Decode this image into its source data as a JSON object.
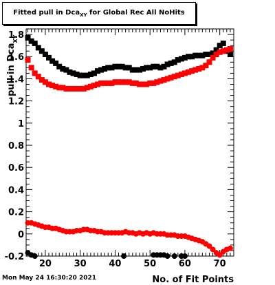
{
  "chart_data": {
    "type": "scatter",
    "title": "Fitted pull in Dca",
    "title_sub": "XY",
    "title_suffix": " for Global Rec All NoHits",
    "xlabel": "No. of Fit Points",
    "ylabel": "pull in Dca",
    "ylabel_sub": "XY",
    "xlim": [
      14.5,
      74
    ],
    "ylim": [
      -0.2,
      1.85
    ],
    "xticks": [
      20,
      30,
      40,
      50,
      60,
      70
    ],
    "yticks": [
      -0.2,
      0,
      0.2,
      0.4,
      0.6,
      0.8,
      1,
      1.2,
      1.4,
      1.6
    ],
    "ytick_labels": [
      "-0.2",
      "0",
      "0.2",
      "0.4",
      "0.6",
      "0.8",
      "1",
      "1.2",
      "1.4",
      "1.6"
    ],
    "extra_ytick": {
      "value": 1.8,
      "label": "1.8"
    },
    "grid": false,
    "series": [
      {
        "name": "",
        "color": "#000000",
        "marker": "square",
        "x": [
          15,
          16,
          17,
          18,
          19,
          20,
          21,
          22,
          23,
          24,
          25,
          26,
          27,
          28,
          29,
          30,
          31,
          32,
          33,
          34,
          35,
          36,
          37,
          38,
          39,
          40,
          41,
          42,
          43,
          44,
          45,
          46,
          47,
          48,
          49,
          50,
          51,
          52,
          53,
          54,
          55,
          56,
          57,
          58,
          59,
          60,
          61,
          62,
          63,
          64,
          65,
          66,
          67,
          68,
          69,
          70,
          71,
          72,
          73
        ],
        "y": [
          1.77,
          1.74,
          1.72,
          1.68,
          1.65,
          1.62,
          1.59,
          1.56,
          1.54,
          1.51,
          1.49,
          1.48,
          1.46,
          1.45,
          1.44,
          1.43,
          1.43,
          1.43,
          1.44,
          1.45,
          1.47,
          1.48,
          1.49,
          1.5,
          1.5,
          1.51,
          1.51,
          1.51,
          1.5,
          1.5,
          1.48,
          1.48,
          1.48,
          1.49,
          1.5,
          1.5,
          1.51,
          1.51,
          1.5,
          1.51,
          1.53,
          1.54,
          1.55,
          1.57,
          1.58,
          1.59,
          1.6,
          1.6,
          1.61,
          1.61,
          1.61,
          1.62,
          1.62,
          1.63,
          1.66,
          1.7,
          1.72,
          1.65,
          1.62
        ]
      },
      {
        "name": "",
        "color": "#ff0000",
        "marker": "square",
        "x": [
          15,
          16,
          17,
          18,
          19,
          20,
          21,
          22,
          23,
          24,
          25,
          26,
          27,
          28,
          29,
          30,
          31,
          32,
          33,
          34,
          35,
          36,
          37,
          38,
          39,
          40,
          41,
          42,
          43,
          44,
          45,
          46,
          47,
          48,
          49,
          50,
          51,
          52,
          53,
          54,
          55,
          56,
          57,
          58,
          59,
          60,
          61,
          62,
          63,
          64,
          65,
          66,
          67,
          68,
          69,
          70,
          71,
          72,
          73
        ],
        "y": [
          1.57,
          1.5,
          1.45,
          1.42,
          1.39,
          1.37,
          1.35,
          1.34,
          1.33,
          1.32,
          1.32,
          1.31,
          1.31,
          1.31,
          1.31,
          1.31,
          1.31,
          1.32,
          1.33,
          1.34,
          1.35,
          1.36,
          1.36,
          1.36,
          1.36,
          1.37,
          1.37,
          1.37,
          1.37,
          1.37,
          1.36,
          1.36,
          1.35,
          1.35,
          1.35,
          1.36,
          1.36,
          1.37,
          1.38,
          1.39,
          1.4,
          1.41,
          1.42,
          1.43,
          1.44,
          1.45,
          1.46,
          1.47,
          1.48,
          1.49,
          1.5,
          1.52,
          1.55,
          1.59,
          1.62,
          1.64,
          1.65,
          1.66,
          1.67
        ]
      },
      {
        "name": "",
        "color": "#ff0000",
        "marker": "circle",
        "x": [
          15,
          16,
          17,
          18,
          19,
          20,
          21,
          22,
          23,
          24,
          25,
          26,
          27,
          28,
          29,
          30,
          31,
          32,
          33,
          34,
          35,
          36,
          37,
          38,
          39,
          40,
          41,
          42,
          43,
          44,
          45,
          46,
          47,
          48,
          49,
          50,
          51,
          52,
          53,
          54,
          55,
          56,
          57,
          58,
          59,
          60,
          61,
          62,
          63,
          64,
          65,
          66,
          67,
          68,
          69,
          70,
          71,
          72,
          73
        ],
        "y": [
          0.1,
          0.1,
          0.09,
          0.08,
          0.07,
          0.06,
          0.06,
          0.05,
          0.05,
          0.04,
          0.03,
          0.02,
          0.02,
          0.02,
          0.03,
          0.03,
          0.04,
          0.04,
          0.03,
          0.03,
          0.02,
          0.02,
          0.01,
          0.01,
          0.01,
          0.01,
          0.01,
          0.01,
          0.02,
          0.01,
          0.01,
          0.0,
          0.01,
          0.0,
          0.01,
          0.0,
          0.01,
          0.0,
          0.0,
          0.0,
          -0.01,
          -0.01,
          -0.01,
          -0.02,
          -0.02,
          -0.02,
          -0.03,
          -0.04,
          -0.05,
          -0.06,
          -0.07,
          -0.09,
          -0.11,
          -0.14,
          -0.17,
          -0.19,
          -0.16,
          -0.14,
          -0.13
        ]
      },
      {
        "name": "",
        "color": "#000000",
        "marker": "circle",
        "x": [
          15,
          16,
          17,
          42.5,
          51,
          52,
          53,
          54,
          55,
          57,
          59,
          60
        ],
        "y": [
          -0.17,
          -0.19,
          -0.2,
          -0.2,
          -0.19,
          -0.19,
          -0.19,
          -0.19,
          -0.2,
          -0.2,
          -0.2,
          -0.2
        ]
      }
    ]
  },
  "footer": {
    "date": "Mon May 24 16:30:20 2021"
  }
}
